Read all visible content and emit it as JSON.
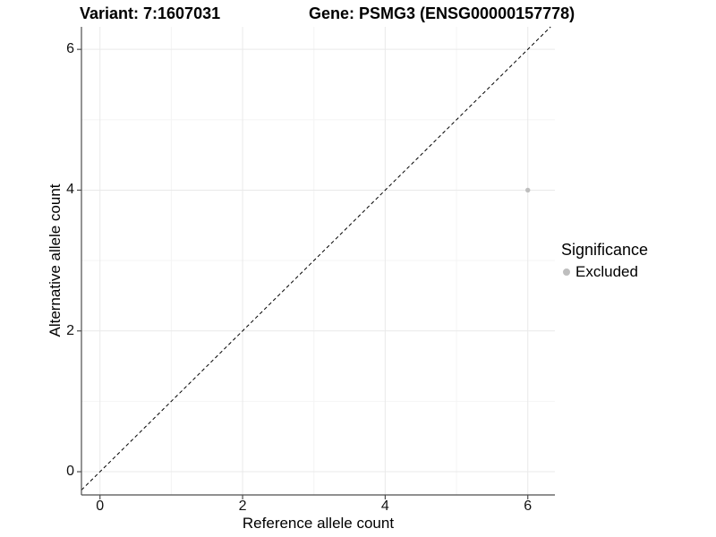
{
  "titles": {
    "variant": "Variant: 7:1607031",
    "gene": "Gene: PSMG3 (ENSG00000157778)"
  },
  "chart_data": {
    "type": "scatter",
    "xlabel": "Reference allele count",
    "ylabel": "Alternative allele count",
    "x_ticks": [
      0,
      2,
      4,
      6
    ],
    "y_ticks": [
      0,
      2,
      4,
      6
    ],
    "minor_ticks": [
      1,
      3,
      5
    ],
    "xlim": [
      -0.26,
      6.38
    ],
    "ylim": [
      -0.33,
      6.32
    ],
    "grid": "major and minor, light gray, on white panel",
    "identity_line": {
      "equation": "y = x",
      "style": "dashed",
      "color": "#000000"
    },
    "series": [
      {
        "name": "Excluded",
        "color": "#bebebe",
        "points": [
          {
            "x": 6,
            "y": 4
          }
        ]
      }
    ],
    "legend": {
      "position": "right",
      "title": "Significance",
      "entries": [
        {
          "label": "Excluded",
          "color": "#bebebe"
        }
      ]
    }
  },
  "colors": {
    "background": "#ffffff",
    "grid_major": "#e9e9e9",
    "grid_minor": "#f4f4f4",
    "axis_line": "#4d4d4d",
    "tick_mark": "#4d4d4d",
    "text": "#111111",
    "point": "#bebebe",
    "identity_line": "#000000"
  }
}
